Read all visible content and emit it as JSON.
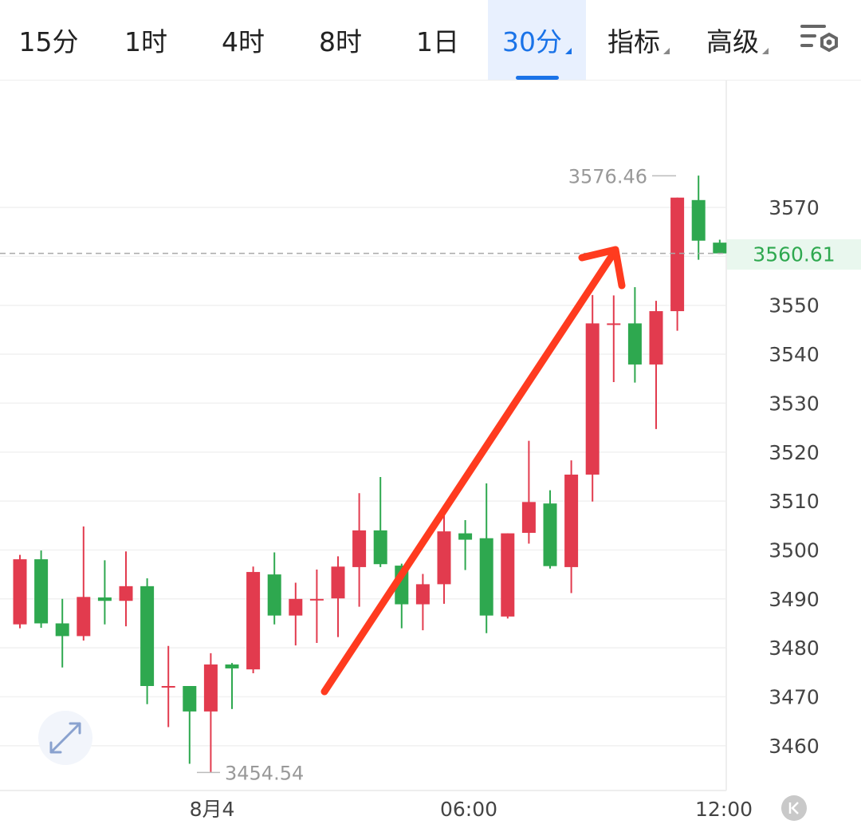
{
  "toolbar": {
    "tabs": [
      {
        "label": "15分",
        "active": false,
        "dropdown": false
      },
      {
        "label": "1时",
        "active": false,
        "dropdown": false
      },
      {
        "label": "4时",
        "active": false,
        "dropdown": false
      },
      {
        "label": "8时",
        "active": false,
        "dropdown": false
      },
      {
        "label": "1日",
        "active": false,
        "dropdown": false
      },
      {
        "label": "30分",
        "active": true,
        "dropdown": true
      },
      {
        "label": "指标",
        "active": false,
        "dropdown": true
      },
      {
        "label": "高级",
        "active": false,
        "dropdown": true
      }
    ],
    "settings_icon": "chart-settings-icon"
  },
  "chart_data": {
    "type": "candlestick",
    "interval": "30分",
    "y_ticks": [
      3460,
      3470,
      3480,
      3490,
      3500,
      3510,
      3520,
      3530,
      3540,
      3550,
      3570
    ],
    "x_ticks": [
      "8月4",
      "06:00",
      "12:00"
    ],
    "current_price": "3560.61",
    "high_label": "3576.46",
    "low_label": "3454.54",
    "colors": {
      "up": "#e23b4e",
      "down": "#2ea84f",
      "current_price": "#2ea84f",
      "annotation_arrow": "#ff3b1f"
    },
    "candles": [
      {
        "o": 3484.8,
        "h": 3499.0,
        "l": 3484.0,
        "c": 3498.1
      },
      {
        "o": 3498.1,
        "h": 3499.9,
        "l": 3484.1,
        "c": 3485.0
      },
      {
        "o": 3485.0,
        "h": 3490.0,
        "l": 3476.0,
        "c": 3482.4
      },
      {
        "o": 3482.4,
        "h": 3504.8,
        "l": 3481.5,
        "c": 3490.4
      },
      {
        "o": 3490.3,
        "h": 3497.9,
        "l": 3484.8,
        "c": 3489.6
      },
      {
        "o": 3489.6,
        "h": 3499.7,
        "l": 3484.4,
        "c": 3492.6
      },
      {
        "o": 3492.6,
        "h": 3494.2,
        "l": 3468.5,
        "c": 3472.2
      },
      {
        "o": 3472.2,
        "h": 3480.4,
        "l": 3463.8,
        "c": 3472.2
      },
      {
        "o": 3472.2,
        "h": 3472.2,
        "l": 3456.3,
        "c": 3467.0
      },
      {
        "o": 3467.0,
        "h": 3478.9,
        "l": 3454.5,
        "c": 3476.6
      },
      {
        "o": 3476.6,
        "h": 3476.9,
        "l": 3467.5,
        "c": 3475.8
      },
      {
        "o": 3475.6,
        "h": 3496.6,
        "l": 3474.8,
        "c": 3495.5
      },
      {
        "o": 3495.0,
        "h": 3499.5,
        "l": 3484.8,
        "c": 3486.6
      },
      {
        "o": 3486.6,
        "h": 3493.3,
        "l": 3480.5,
        "c": 3490.0
      },
      {
        "o": 3490.0,
        "h": 3496.0,
        "l": 3481.0,
        "c": 3490.0
      },
      {
        "o": 3490.1,
        "h": 3498.7,
        "l": 3482.2,
        "c": 3496.6
      },
      {
        "o": 3496.5,
        "h": 3511.6,
        "l": 3488.4,
        "c": 3504.0
      },
      {
        "o": 3504.0,
        "h": 3514.9,
        "l": 3496.5,
        "c": 3497.1
      },
      {
        "o": 3496.8,
        "h": 3497.2,
        "l": 3484.0,
        "c": 3488.9
      },
      {
        "o": 3488.9,
        "h": 3495.1,
        "l": 3483.6,
        "c": 3493.0
      },
      {
        "o": 3493.0,
        "h": 3508.4,
        "l": 3489.0,
        "c": 3503.8
      },
      {
        "o": 3503.4,
        "h": 3506.1,
        "l": 3495.9,
        "c": 3502.1
      },
      {
        "o": 3502.4,
        "h": 3513.6,
        "l": 3483.0,
        "c": 3486.6
      },
      {
        "o": 3486.4,
        "h": 3503.4,
        "l": 3486.0,
        "c": 3503.4
      },
      {
        "o": 3503.5,
        "h": 3522.3,
        "l": 3501.3,
        "c": 3509.8
      },
      {
        "o": 3509.5,
        "h": 3512.2,
        "l": 3496.2,
        "c": 3496.7
      },
      {
        "o": 3496.5,
        "h": 3518.3,
        "l": 3491.2,
        "c": 3515.4
      },
      {
        "o": 3515.4,
        "h": 3552.1,
        "l": 3509.9,
        "c": 3546.3
      },
      {
        "o": 3546.3,
        "h": 3552.0,
        "l": 3534.3,
        "c": 3546.3
      },
      {
        "o": 3546.3,
        "h": 3553.7,
        "l": 3534.2,
        "c": 3537.9
      },
      {
        "o": 3537.9,
        "h": 3550.9,
        "l": 3524.7,
        "c": 3548.8
      },
      {
        "o": 3548.8,
        "h": 3572.0,
        "l": 3544.8,
        "c": 3572.0
      },
      {
        "o": 3571.5,
        "h": 3576.5,
        "l": 3559.3,
        "c": 3563.2
      },
      {
        "o": 3562.8,
        "h": 3563.4,
        "l": 3560.5,
        "c": 3560.6
      }
    ]
  }
}
